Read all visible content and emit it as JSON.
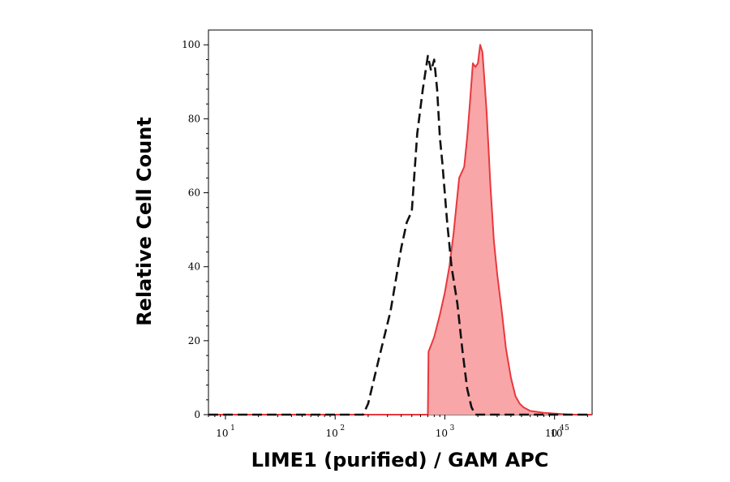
{
  "chart_data": {
    "type": "area",
    "title": "",
    "xlabel": "LIME1 (purified) / GAM APC",
    "ylabel": "Relative Cell Count",
    "x_scale": "log",
    "xlim": [
      7,
      22000
    ],
    "ylim": [
      0,
      104
    ],
    "grid": false,
    "legend": "none",
    "x_ticks": [
      {
        "base": "10",
        "exp": "1",
        "value": 10
      },
      {
        "base": "10",
        "exp": "2",
        "value": 100
      },
      {
        "base": "10",
        "exp": "3",
        "value": 1000
      },
      {
        "base": "10",
        "exp": "4",
        "value": 10000
      },
      {
        "base": "10",
        "exp": "5",
        "value": 100000
      }
    ],
    "y_ticks": [
      {
        "label": "0",
        "value": 0
      },
      {
        "label": "20",
        "value": 20
      },
      {
        "label": "40",
        "value": 40
      },
      {
        "label": "60",
        "value": 60
      },
      {
        "label": "80",
        "value": 80
      },
      {
        "label": "100",
        "value": 100
      }
    ],
    "series": [
      {
        "style": "dashed",
        "color": "#111111",
        "x": [
          7,
          180,
          200,
          250,
          320,
          400,
          450,
          500,
          560,
          630,
          700,
          750,
          800,
          850,
          900,
          950,
          1050,
          1150,
          1300,
          1450,
          1600,
          1750,
          1900,
          2100,
          22000
        ],
        "y": [
          0,
          0,
          3,
          15,
          28,
          45,
          52,
          55,
          76,
          88,
          97,
          93,
          96,
          88,
          75,
          68,
          52,
          40,
          30,
          17,
          7,
          2,
          0,
          0,
          0
        ]
      },
      {
        "style": "filled",
        "color": "#e8383d",
        "fill": "#f9a6a8",
        "x": [
          7,
          700,
          710,
          800,
          900,
          1000,
          1100,
          1200,
          1350,
          1500,
          1600,
          1700,
          1800,
          1900,
          2000,
          2100,
          2200,
          2300,
          2400,
          2500,
          2600,
          2800,
          3000,
          3300,
          3600,
          4000,
          4400,
          4800,
          5200,
          6000,
          8000,
          10000,
          14000,
          22000
        ],
        "y": [
          0,
          0,
          17,
          21,
          27,
          33,
          40,
          49,
          64,
          67,
          75,
          85,
          95,
          94,
          95,
          100,
          98,
          90,
          82,
          72,
          62,
          47,
          38,
          28,
          18,
          10,
          5,
          3,
          2,
          1,
          0.5,
          0.3,
          0,
          0
        ]
      }
    ]
  }
}
